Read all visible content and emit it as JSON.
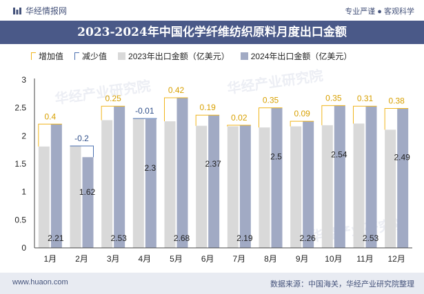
{
  "header": {
    "brand": "华经情报网",
    "tagline": "专业严谨 ● 客观科学"
  },
  "footer": {
    "website": "www.huaon.com",
    "source": "数据来源：中国海关，华经产业研究院整理"
  },
  "watermark": "华经产业研究院",
  "colors": {
    "bar2023": "#d9d9d9",
    "bar2024": "#a1aac4",
    "increase": "#f0b41a",
    "decrease": "#4a6fb0",
    "titlebar": "#4a5988"
  },
  "chart_data": {
    "type": "bar",
    "title": "2023-2024年中国化学纤维纺织原料月度出口金额",
    "legend": [
      "增加值",
      "减少值",
      "2023年出口金额（亿美元）",
      "2024年出口金额（亿美元）"
    ],
    "categories": [
      "1月",
      "2月",
      "3月",
      "4月",
      "5月",
      "6月",
      "7月",
      "8月",
      "9月",
      "10月",
      "11月",
      "12月"
    ],
    "ylim": [
      0,
      3
    ],
    "yticks": [
      "0",
      "0.5",
      "1",
      "1.5",
      "2",
      "2.5",
      "3"
    ],
    "series": [
      {
        "name": "2023年出口金额（亿美元）",
        "values": [
          1.81,
          1.82,
          2.28,
          2.31,
          2.26,
          2.18,
          2.17,
          2.15,
          2.17,
          2.19,
          2.22,
          2.11
        ]
      },
      {
        "name": "2024年出口金额（亿美元）",
        "values": [
          2.21,
          1.62,
          2.53,
          2.3,
          2.68,
          2.37,
          2.19,
          2.5,
          2.26,
          2.54,
          2.53,
          2.49
        ]
      }
    ],
    "change_labels": [
      "0.4",
      "-0.2",
      "0.25",
      "-0.01",
      "0.42",
      "0.19",
      "0.02",
      "0.35",
      "0.09",
      "0.35",
      "0.31",
      "0.38"
    ],
    "value_labels": [
      "2.21",
      "1.62",
      "2.53",
      "2.3",
      "2.68",
      "2.37",
      "2.19",
      "2.5",
      "2.26",
      "2.54",
      "2.53",
      "2.49"
    ]
  }
}
